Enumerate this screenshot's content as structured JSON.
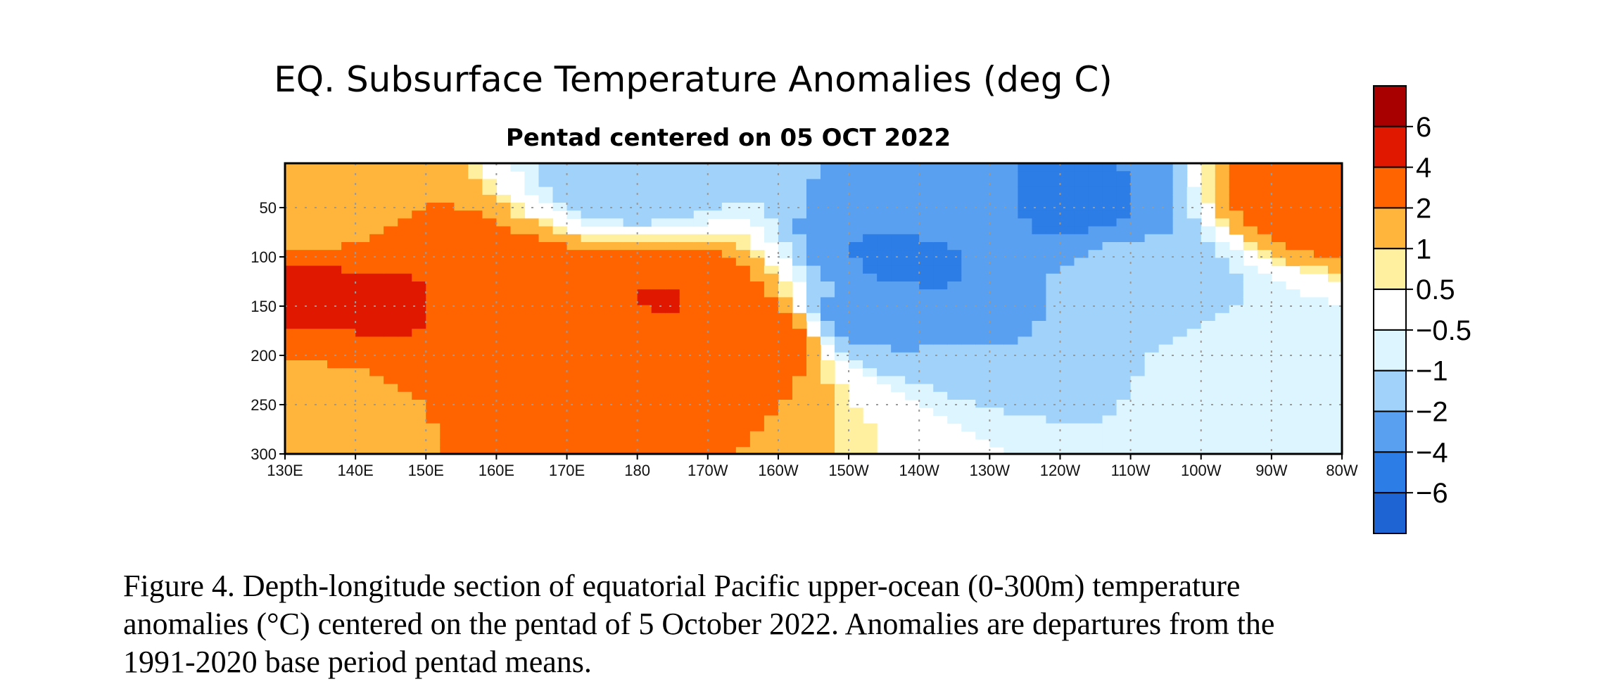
{
  "chart_data": {
    "type": "heatmap",
    "title": "EQ. Subsurface Temperature Anomalies (deg C)",
    "subtitle": "Pentad centered on 05 OCT 2022",
    "xlabel": "",
    "ylabel": "",
    "x_ticks": [
      {
        "label": "130E",
        "lon": 130
      },
      {
        "label": "140E",
        "lon": 140
      },
      {
        "label": "150E",
        "lon": 150
      },
      {
        "label": "160E",
        "lon": 160
      },
      {
        "label": "170E",
        "lon": 170
      },
      {
        "label": "180",
        "lon": 180
      },
      {
        "label": "170W",
        "lon": 190
      },
      {
        "label": "160W",
        "lon": 200
      },
      {
        "label": "150W",
        "lon": 210
      },
      {
        "label": "140W",
        "lon": 220
      },
      {
        "label": "130W",
        "lon": 230
      },
      {
        "label": "120W",
        "lon": 240
      },
      {
        "label": "110W",
        "lon": 250
      },
      {
        "label": "100W",
        "lon": 260
      },
      {
        "label": "90W",
        "lon": 270
      },
      {
        "label": "80W",
        "lon": 280
      }
    ],
    "y_ticks": [
      {
        "label": "50",
        "depth": 50
      },
      {
        "label": "100",
        "depth": 100
      },
      {
        "label": "150",
        "depth": 150
      },
      {
        "label": "200",
        "depth": 200
      },
      {
        "label": "250",
        "depth": 250
      },
      {
        "label": "300",
        "depth": 300
      }
    ],
    "xlim": [
      130,
      280
    ],
    "ylim": [
      300,
      5
    ],
    "grid": true,
    "colorbar": {
      "levels": [
        {
          "label": "6",
          "value": 6
        },
        {
          "label": "4",
          "value": 4
        },
        {
          "label": "2",
          "value": 2
        },
        {
          "label": "1",
          "value": 1
        },
        {
          "label": "0.5",
          "value": 0.5
        },
        {
          "label": "−0.5",
          "value": -0.5
        },
        {
          "label": "−1",
          "value": -1
        },
        {
          "label": "−2",
          "value": -2
        },
        {
          "label": "−4",
          "value": -4
        },
        {
          "label": "−6",
          "value": -6
        }
      ],
      "colors": [
        "#a80000",
        "#e01800",
        "#ff6400",
        "#ffb43c",
        "#fff0a0",
        "#ffffff",
        "#dcf5ff",
        "#a0d2fa",
        "#5aa0f0",
        "#2d7de6",
        "#1e64d2"
      ]
    },
    "anomaly_features": [
      {
        "lon": 148,
        "depth": 150,
        "value": 4.5
      },
      {
        "lon": 133,
        "depth": 135,
        "value": 4.2
      },
      {
        "lon": 184,
        "depth": 152,
        "value": 4.2
      },
      {
        "lon": 153,
        "depth": 150,
        "value": 3.0
      },
      {
        "lon": 168,
        "depth": 165,
        "value": 3.0
      },
      {
        "lon": 185,
        "depth": 165,
        "value": 3.0
      },
      {
        "lon": 197,
        "depth": 180,
        "value": 2.8
      },
      {
        "lon": 135,
        "depth": 250,
        "value": 1.5
      },
      {
        "lon": 133,
        "depth": 60,
        "value": 1.2
      },
      {
        "lon": 277,
        "depth": 35,
        "value": 3.0
      },
      {
        "lon": 219,
        "depth": 100,
        "value": -4.5
      },
      {
        "lon": 240,
        "depth": 45,
        "value": -4.5
      },
      {
        "lon": 225,
        "depth": 60,
        "value": -2.2
      },
      {
        "lon": 212,
        "depth": 160,
        "value": -2.3
      },
      {
        "lon": 250,
        "depth": 120,
        "value": -1.5
      },
      {
        "lon": 180,
        "depth": 25,
        "value": -1.5
      },
      {
        "lon": 268,
        "depth": 200,
        "value": -0.8
      }
    ]
  },
  "caption": {
    "line1": "Figure 4. Depth-longitude section of equatorial Pacific upper-ocean (0-300m) temperature",
    "line2": "anomalies (°C) centered on the pentad of 5 October 2022. Anomalies are departures from the",
    "line3": "1991-2020 base period pentad means."
  }
}
